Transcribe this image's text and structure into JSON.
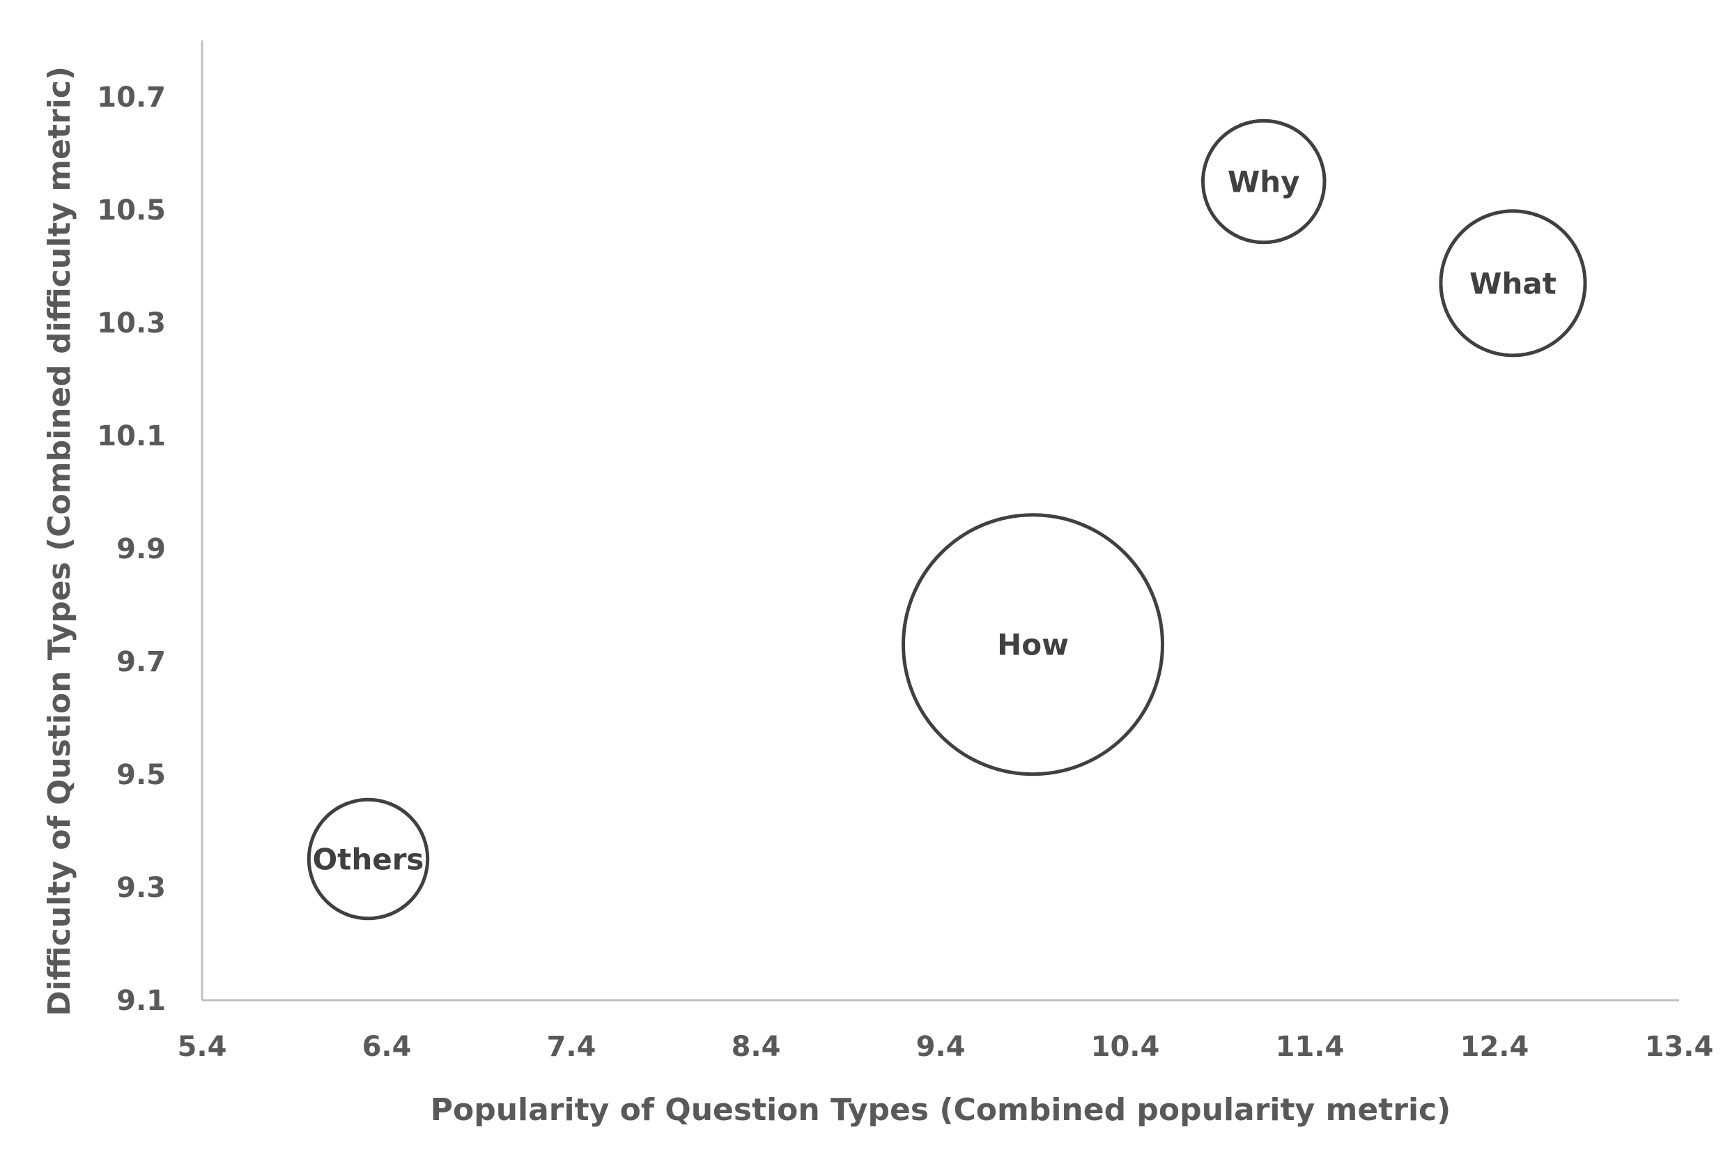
{
  "chart_data": {
    "type": "bubble",
    "title": "",
    "xlabel": "Popularity of Question Types (Combined popularity metric)",
    "ylabel": "Difficulty of Qustion Types (Combined difficulty metric)",
    "xlim": [
      5.4,
      13.4
    ],
    "ylim": [
      9.1,
      10.8
    ],
    "xticks": [
      "5.4",
      "6.4",
      "7.4",
      "8.4",
      "9.4",
      "10.4",
      "11.4",
      "12.4",
      "13.4"
    ],
    "yticks": [
      "9.1",
      "9.3",
      "9.5",
      "9.7",
      "9.9",
      "10.1",
      "10.3",
      "10.5",
      "10.7"
    ],
    "grid": false,
    "legend": "none",
    "points": [
      {
        "label": "Others",
        "x": 6.3,
        "y": 9.35,
        "size": 0.21
      },
      {
        "label": "How",
        "x": 9.9,
        "y": 9.73,
        "size": 1.0
      },
      {
        "label": "Why",
        "x": 11.15,
        "y": 10.55,
        "size": 0.22
      },
      {
        "label": "What",
        "x": 12.5,
        "y": 10.37,
        "size": 0.31
      }
    ],
    "colors": {
      "axis": "#bfbfbf",
      "text": "#595959",
      "bubble_stroke": "#404040",
      "bubble_label": "#404040",
      "bubble_fill": "#ffffff"
    }
  }
}
